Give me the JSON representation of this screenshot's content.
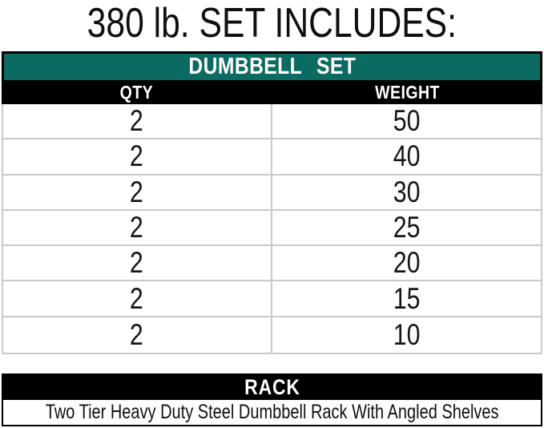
{
  "title": "380 lb. SET INCLUDES:",
  "colors": {
    "teal_header": "#0B6A62",
    "black_header": "#000000",
    "row_border": "#C9C9C9",
    "text": "#161616",
    "background": "#FFFFFF"
  },
  "dumbbell_set": {
    "header": "DUMBBELL SET",
    "columns": [
      "QTY",
      "WEIGHT"
    ],
    "rows": [
      {
        "qty": "2",
        "weight": "50"
      },
      {
        "qty": "2",
        "weight": "40"
      },
      {
        "qty": "2",
        "weight": "30"
      },
      {
        "qty": "2",
        "weight": "25"
      },
      {
        "qty": "2",
        "weight": "20"
      },
      {
        "qty": "2",
        "weight": "15"
      },
      {
        "qty": "2",
        "weight": "10"
      }
    ]
  },
  "rack": {
    "header": "RACK",
    "description": "Two Tier Heavy Duty Steel Dumbbell Rack With Angled Shelves"
  },
  "chart_data": {
    "type": "table",
    "title": "380 lb. SET INCLUDES:",
    "sections": [
      {
        "name": "DUMBBELL SET",
        "columns": [
          "QTY",
          "WEIGHT"
        ],
        "rows": [
          [
            2,
            50
          ],
          [
            2,
            40
          ],
          [
            2,
            30
          ],
          [
            2,
            25
          ],
          [
            2,
            20
          ],
          [
            2,
            15
          ],
          [
            2,
            10
          ]
        ]
      },
      {
        "name": "RACK",
        "rows": [
          [
            "Two Tier Heavy Duty Steel Dumbbell Rack With Angled Shelves"
          ]
        ]
      }
    ]
  }
}
